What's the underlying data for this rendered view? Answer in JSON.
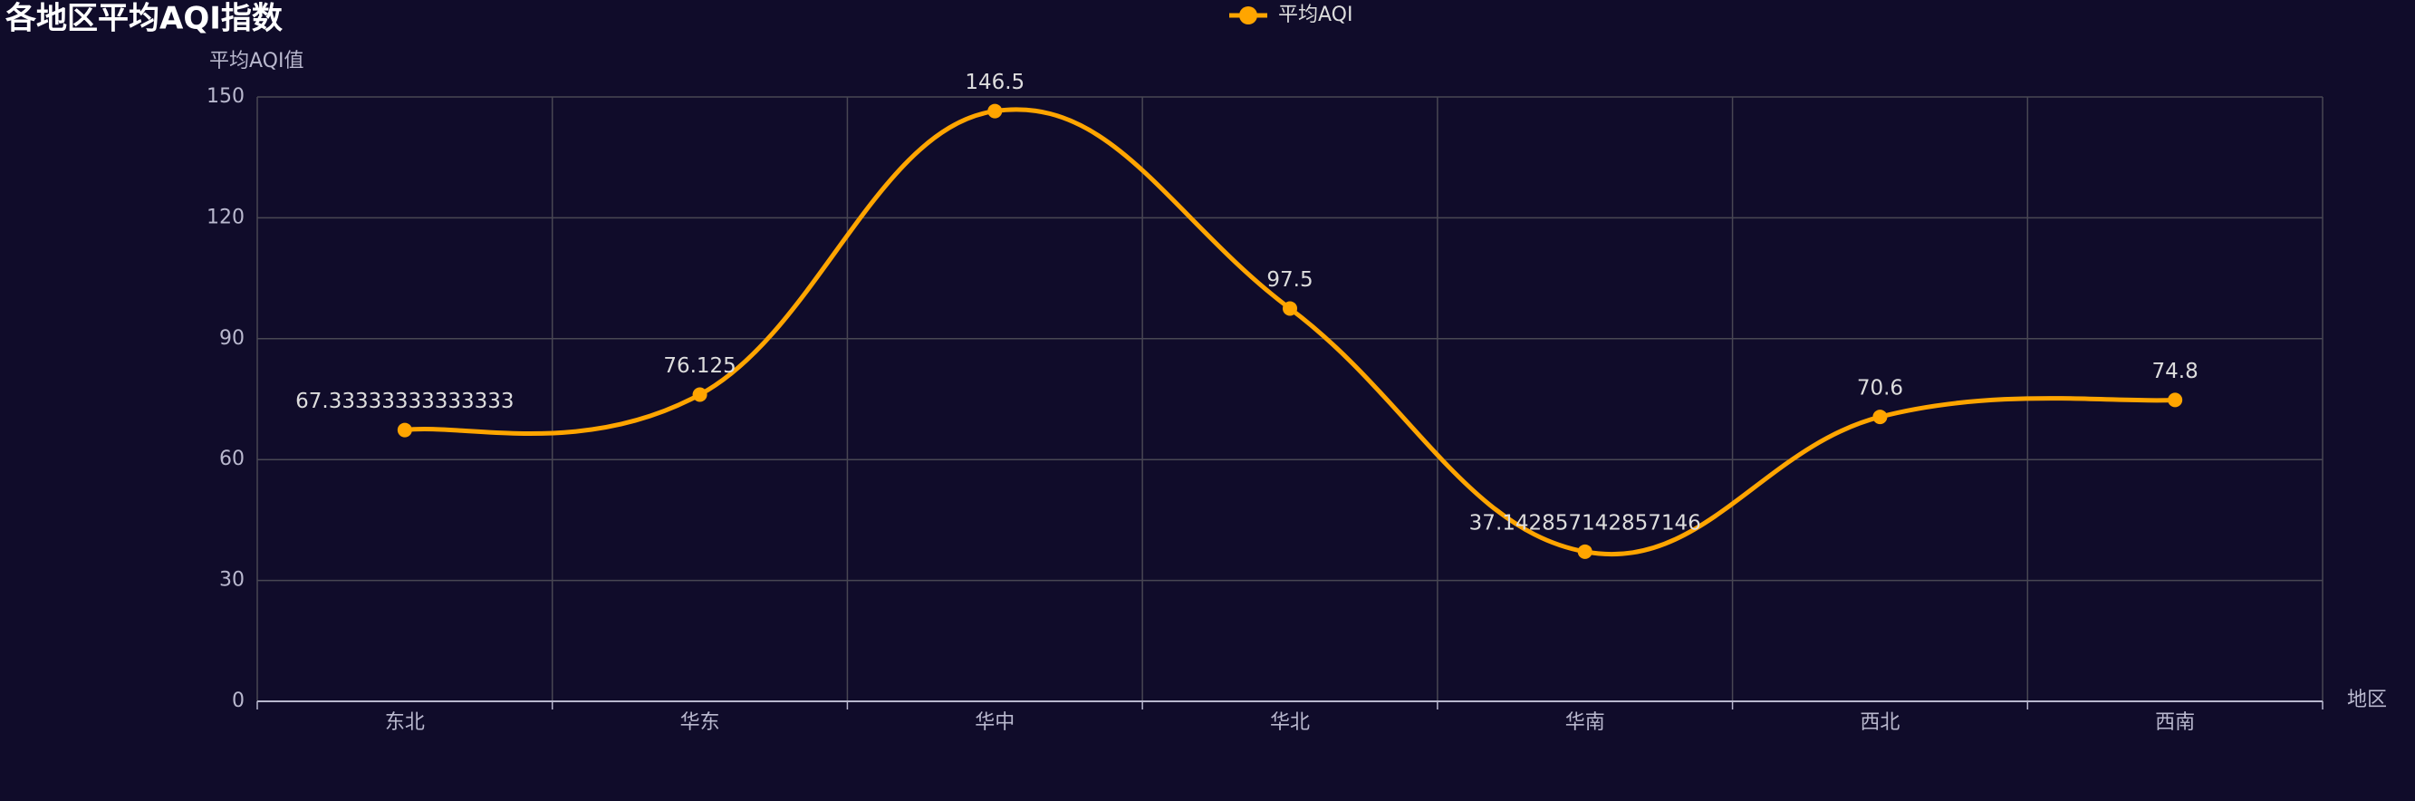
{
  "chart_data": {
    "type": "line",
    "title": "各地区平均AQI指数",
    "y_label": "平均AQI值",
    "x_label": "地区",
    "categories": [
      "东北",
      "华东",
      "华中",
      "华北",
      "华南",
      "西北",
      "西南"
    ],
    "series": [
      {
        "name": "平均AQI",
        "color": "#ffa500",
        "values": [
          67.33333333333333,
          76.125,
          146.5,
          97.5,
          37.142857142857146,
          70.6,
          74.8
        ]
      }
    ],
    "ylim": [
      0,
      150
    ],
    "yticks": [
      0,
      30,
      60,
      90,
      120,
      150
    ],
    "grid": true,
    "smooth": true,
    "legend": "top"
  }
}
